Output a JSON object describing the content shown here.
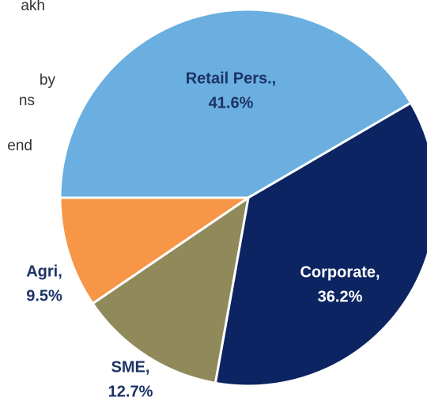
{
  "annotations": [
    "akh",
    "by",
    "ns",
    "end"
  ],
  "chart_data": {
    "type": "pie",
    "categories": [
      "Retail Pers.,",
      "Corporate,",
      "SME,",
      "Agri,"
    ],
    "values": [
      41.6,
      36.2,
      12.7,
      9.5
    ],
    "value_labels": [
      "41.6%",
      "36.2%",
      "12.7%",
      "9.5%"
    ],
    "colors": [
      "#6aafe0",
      "#0c2461",
      "#908a5b",
      "#f79646"
    ]
  }
}
